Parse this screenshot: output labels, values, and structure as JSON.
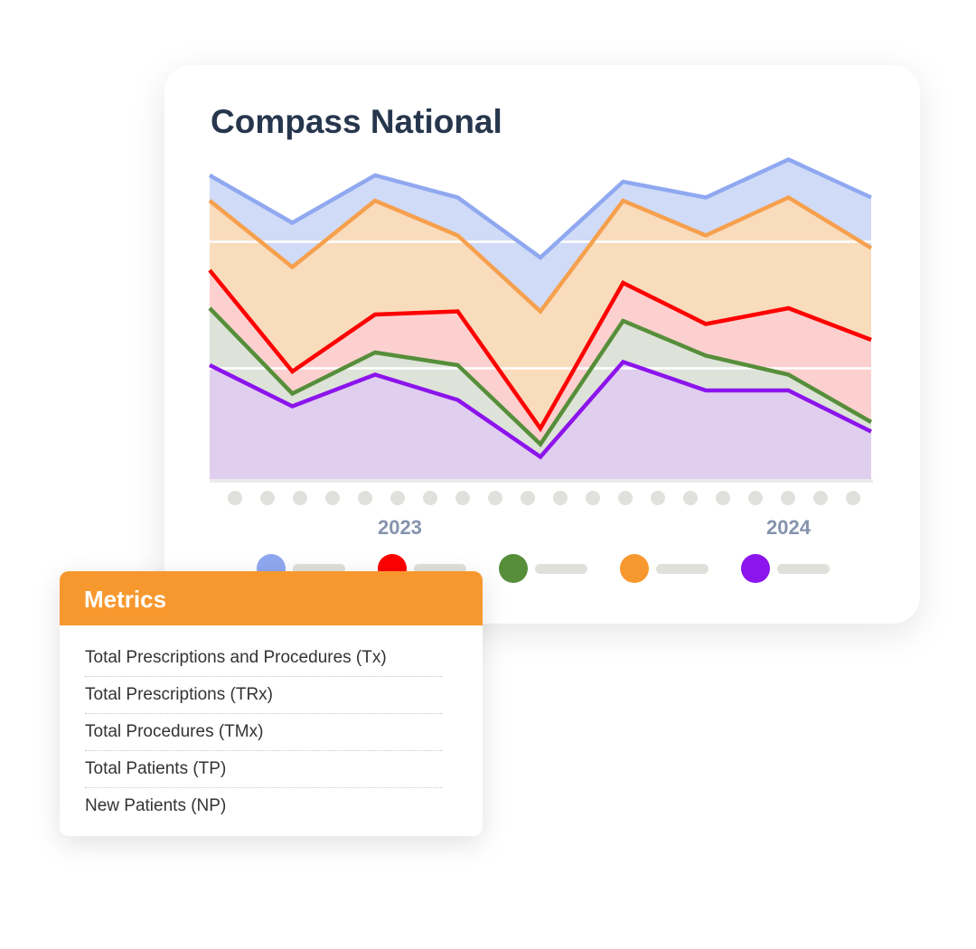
{
  "card": {
    "title": "Compass National"
  },
  "metrics": {
    "title": "Metrics",
    "items": [
      "Total Prescriptions and Procedures (Tx)",
      "Total Prescriptions (TRx)",
      "Total Procedures (TMx)",
      "Total Patients (TP)",
      "New Patients (NP)"
    ]
  },
  "chart_data": {
    "type": "area",
    "title": "Compass National",
    "xlabel": "",
    "ylabel": "",
    "x": [
      1,
      2,
      3,
      4,
      5,
      6,
      7,
      8,
      9
    ],
    "ylim": [
      0,
      105
    ],
    "gridlines": [
      35,
      75
    ],
    "x_tick_dots": 20,
    "x_labels": [
      {
        "label": "2023",
        "position": 3.3
      },
      {
        "label": "2024",
        "position": 8
      }
    ],
    "series": [
      {
        "color": "#8fa8f0",
        "fill": "#d0dbf7",
        "values": [
          96,
          81,
          96,
          89,
          70,
          94,
          89,
          101,
          89
        ]
      },
      {
        "color": "#f6a04d",
        "fill": "#f9dcbc",
        "values": [
          88,
          67,
          88,
          77,
          53,
          88,
          77,
          89,
          73
        ]
      },
      {
        "color": "#ff0000",
        "fill": "#fbd0cf",
        "values": [
          66,
          34,
          52,
          53,
          16,
          62,
          49,
          54,
          44
        ]
      },
      {
        "color": "#568e3a",
        "fill": "#dde3d8",
        "values": [
          54,
          27,
          40,
          36,
          11,
          50,
          39,
          33,
          18
        ]
      },
      {
        "color": "#8c14ec",
        "fill": "#e0ceef",
        "values": [
          36,
          23,
          33,
          25,
          7,
          37,
          28,
          28,
          15
        ]
      }
    ],
    "legend": {
      "placement": "bottom",
      "colors": [
        "#8fa8f0",
        "#ff0000",
        "#568e3a",
        "#f7982e",
        "#8c14ec"
      ]
    }
  }
}
